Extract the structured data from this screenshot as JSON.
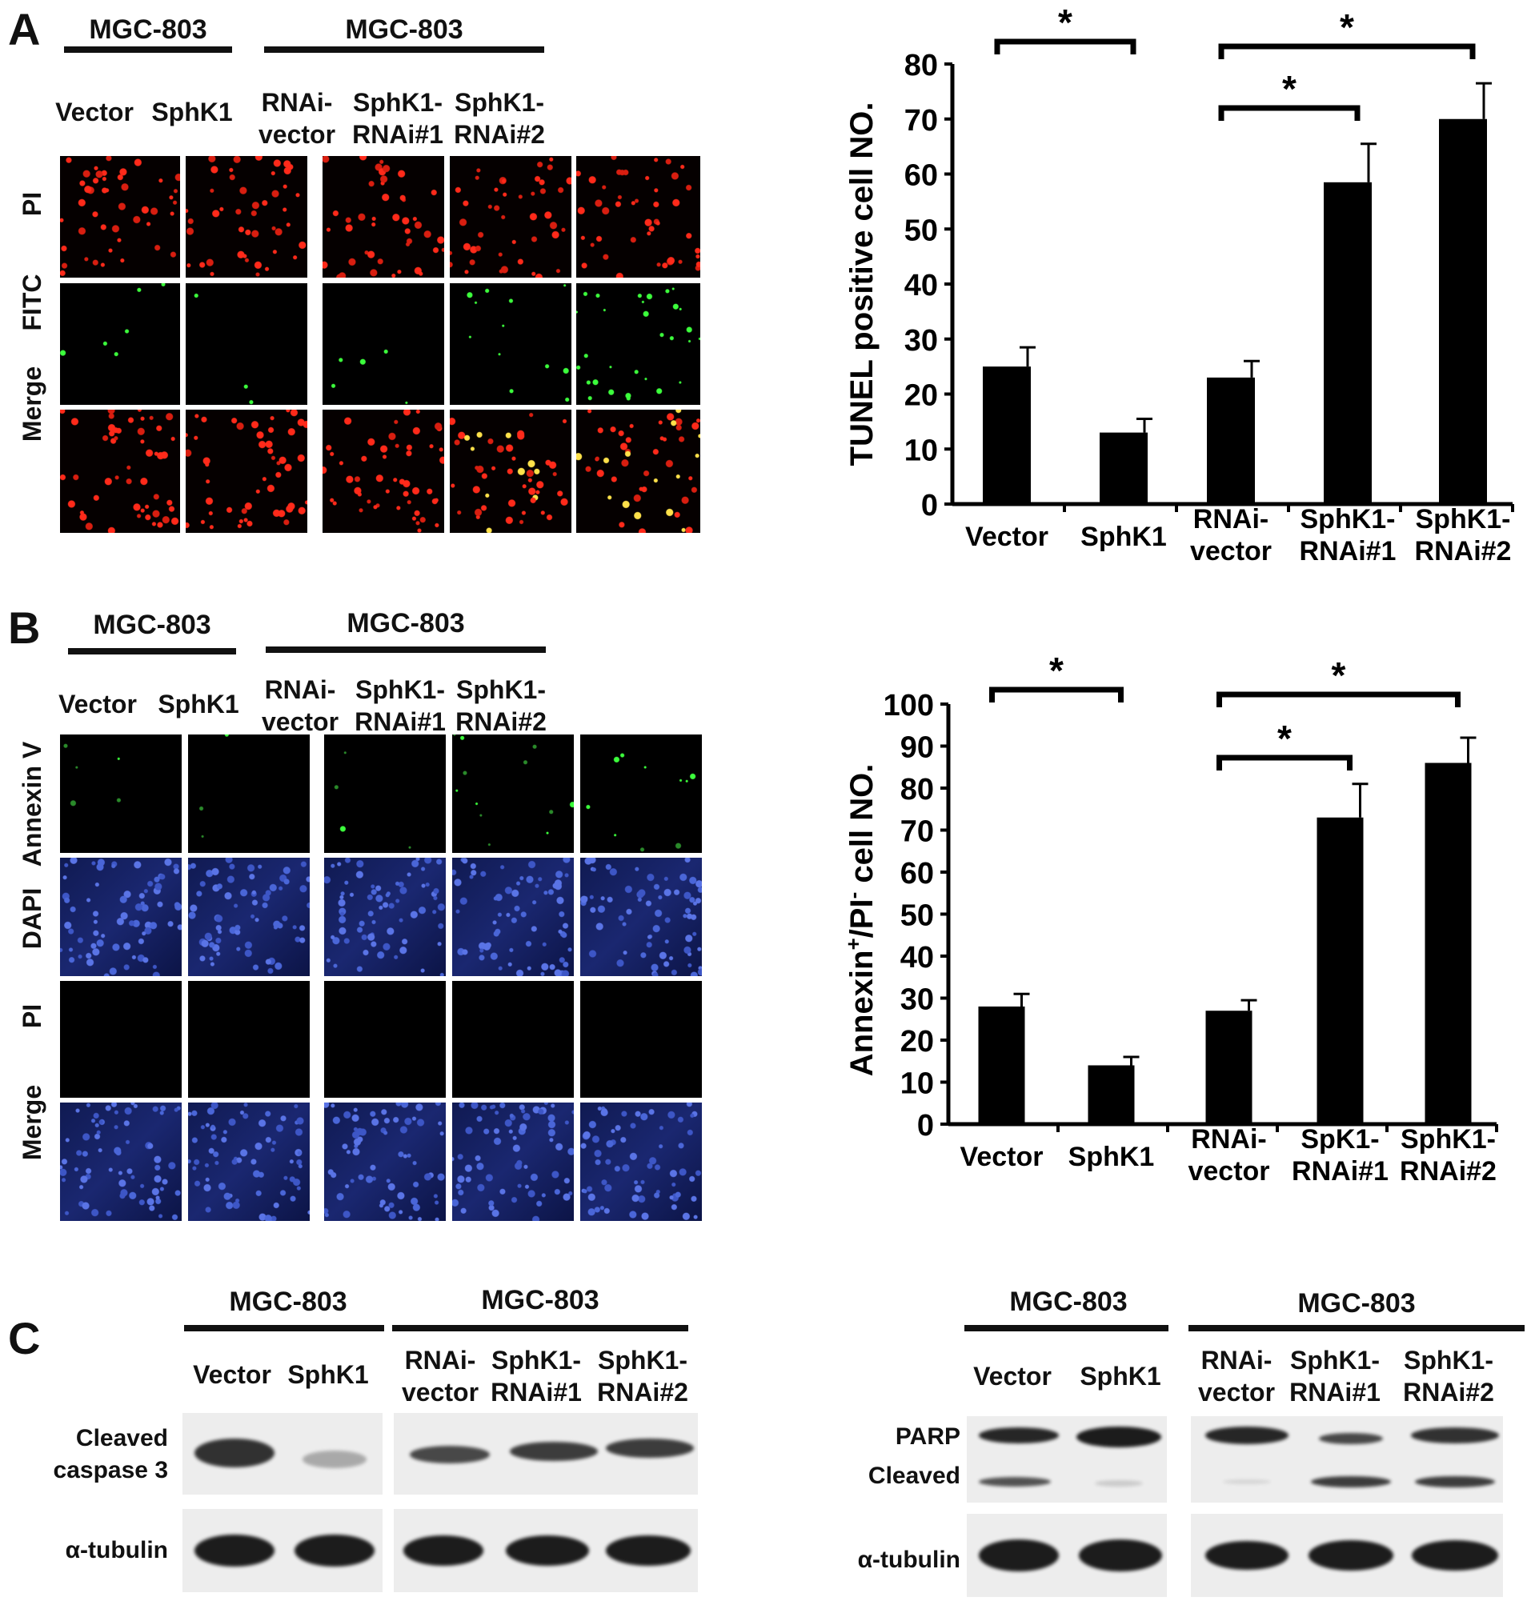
{
  "panels": {
    "a": "A",
    "b": "B",
    "c": "C"
  },
  "cell_line": "MGC-803",
  "groups": [
    {
      "key": "vector",
      "label": "Vector"
    },
    {
      "key": "sphk1",
      "label": "SphK1"
    },
    {
      "key": "rnai_vector",
      "label": "RNAi-\nvector"
    },
    {
      "key": "rnai1",
      "label": "SphK1-\nRNAi#1"
    },
    {
      "key": "rnai2",
      "label": "SphK1-\nRNAi#2"
    }
  ],
  "panel_a": {
    "rows": [
      "PI",
      "FITC",
      "Merge"
    ]
  },
  "panel_b": {
    "rows": [
      "Annexin V",
      "DAPI",
      "PI",
      "Merge"
    ]
  },
  "panel_c": {
    "left_rows": [
      "Cleaved\ncaspase 3",
      "α-tubulin"
    ],
    "right_rows": [
      "PARP",
      "Cleaved",
      "α-tubulin"
    ]
  },
  "colors": {
    "pi": "#ff2a1a",
    "fitc": "#3cff3c",
    "merge_yellow": "#ffe14a",
    "dapi": "#2b3ea8",
    "bar": "#000000"
  },
  "chart_data": [
    {
      "type": "bar",
      "panel": "A",
      "categories": [
        "Vector",
        "SphK1",
        "RNAi-\nvector",
        "SphK1-\nRNAi#1",
        "SphK1-\nRNAi#2"
      ],
      "values": [
        25,
        13,
        23,
        58.5,
        70
      ],
      "errors": [
        3.5,
        2.5,
        3,
        7,
        6.5
      ],
      "ylabel": "TUNEL positive cell NO.",
      "ylim": [
        0,
        80
      ],
      "yticks": [
        "0",
        "10",
        "20",
        "30",
        "40",
        "50",
        "60",
        "70",
        "80"
      ],
      "significance": [
        "*",
        "*",
        "*"
      ]
    },
    {
      "type": "bar",
      "panel": "B",
      "categories": [
        "Vector",
        "SphK1",
        "RNAi-\nvector",
        "SpK1-\nRNAi#1",
        "SphK1-\nRNAi#2"
      ],
      "values": [
        28,
        14,
        27,
        73,
        86
      ],
      "errors": [
        3,
        2,
        2.5,
        8,
        6
      ],
      "ylabel": "Annexin+/PI- cell NO.",
      "ylabel_parts": [
        "Annexin",
        "+",
        "/PI",
        "-",
        " cell NO."
      ],
      "ylim": [
        0,
        100
      ],
      "yticks": [
        "0",
        "10",
        "20",
        "30",
        "40",
        "50",
        "60",
        "70",
        "80",
        "90",
        "100"
      ],
      "significance": [
        "*",
        "*",
        "*"
      ]
    }
  ]
}
